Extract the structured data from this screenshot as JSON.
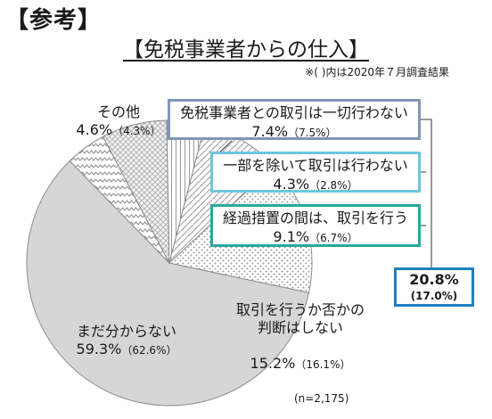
{
  "header": "【参考】",
  "title": "【免税事業者からの仕入】",
  "note": "※(  )内は2020年７月調査結果",
  "sample": "(n=2,175)",
  "total": {
    "value": "20.8%",
    "prev": "(17.0%)",
    "color": "#1e7fc2"
  },
  "chart_data": {
    "type": "pie",
    "title": "【免税事業者からの仕入】",
    "slices": [
      {
        "label": "まだ分からない",
        "value": 59.3,
        "prev": 62.6,
        "value_text": "59.3%",
        "prev_text": "（62.6%）",
        "fill": "#d6d6d6"
      },
      {
        "label": "その他",
        "value": 4.6,
        "prev": 4.3,
        "value_text": "4.6%",
        "prev_text": "（4.3%）",
        "fill": "#ffffff"
      },
      {
        "label": "免税事業者との取引は一切行わない",
        "value": 7.4,
        "prev": 7.5,
        "value_text": "7.4%",
        "prev_text": "（7.5%）",
        "fill": "#ececec",
        "box_color": "#7f97b8"
      },
      {
        "label": "一部を除いて取引は行わない",
        "value": 4.3,
        "prev": 2.8,
        "value_text": "4.3%",
        "prev_text": "（2.8%）",
        "fill": "#ffffff",
        "box_color": "#6ec6dc"
      },
      {
        "label": "経過措置の間は、取引を行う",
        "value": 9.1,
        "prev": 6.7,
        "value_text": "9.1%",
        "prev_text": "（6.7%）",
        "fill": "#f2f2f2",
        "box_color": "#2aa89c"
      },
      {
        "label": "取引を行うか否かの\n判断はしない",
        "value": 15.2,
        "prev": 16.1,
        "value_text": "15.2%",
        "prev_text": "（16.1%）",
        "fill": "#f7f7f7"
      }
    ]
  }
}
